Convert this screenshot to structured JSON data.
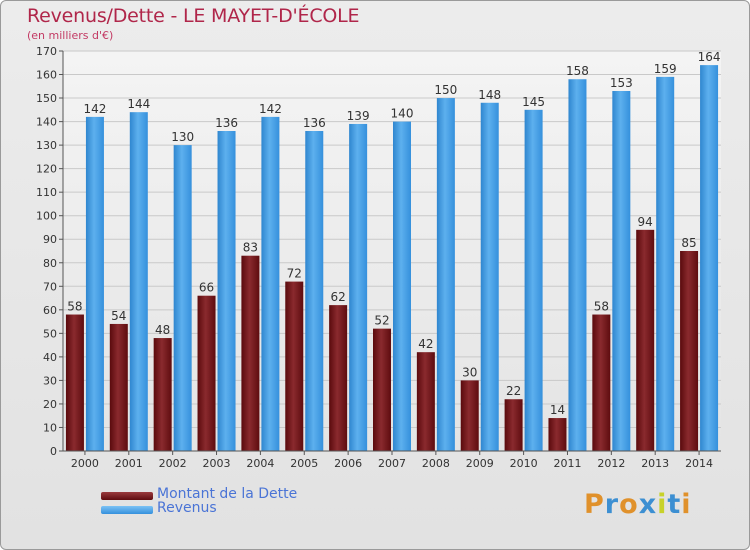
{
  "title": "Revenus/Dette - LE MAYET-D'ÉCOLE",
  "subtitle": "(en milliers d'€)",
  "logo_text": "Proxiti",
  "colors": {
    "dette": "#6e0f12",
    "revenus": "#3e98df",
    "title": "#b0264a",
    "legend_text": "#4a74d6"
  },
  "chart_data": {
    "type": "bar",
    "categories": [
      "2000",
      "2001",
      "2002",
      "2003",
      "2004",
      "2005",
      "2006",
      "2007",
      "2008",
      "2009",
      "2010",
      "2011",
      "2012",
      "2013",
      "2014"
    ],
    "series": [
      {
        "name": "Montant de la Dette",
        "values": [
          58,
          54,
          48,
          66,
          83,
          72,
          62,
          52,
          42,
          30,
          22,
          14,
          58,
          94,
          85
        ]
      },
      {
        "name": "Revenus",
        "values": [
          142,
          144,
          130,
          136,
          142,
          136,
          139,
          140,
          150,
          148,
          145,
          158,
          153,
          159,
          164
        ]
      }
    ],
    "ylim": [
      0,
      170
    ],
    "yticks": [
      0,
      10,
      20,
      30,
      40,
      50,
      60,
      70,
      80,
      90,
      100,
      110,
      120,
      130,
      140,
      150,
      160,
      170
    ],
    "grid": true,
    "legend_position": "bottom-left"
  }
}
